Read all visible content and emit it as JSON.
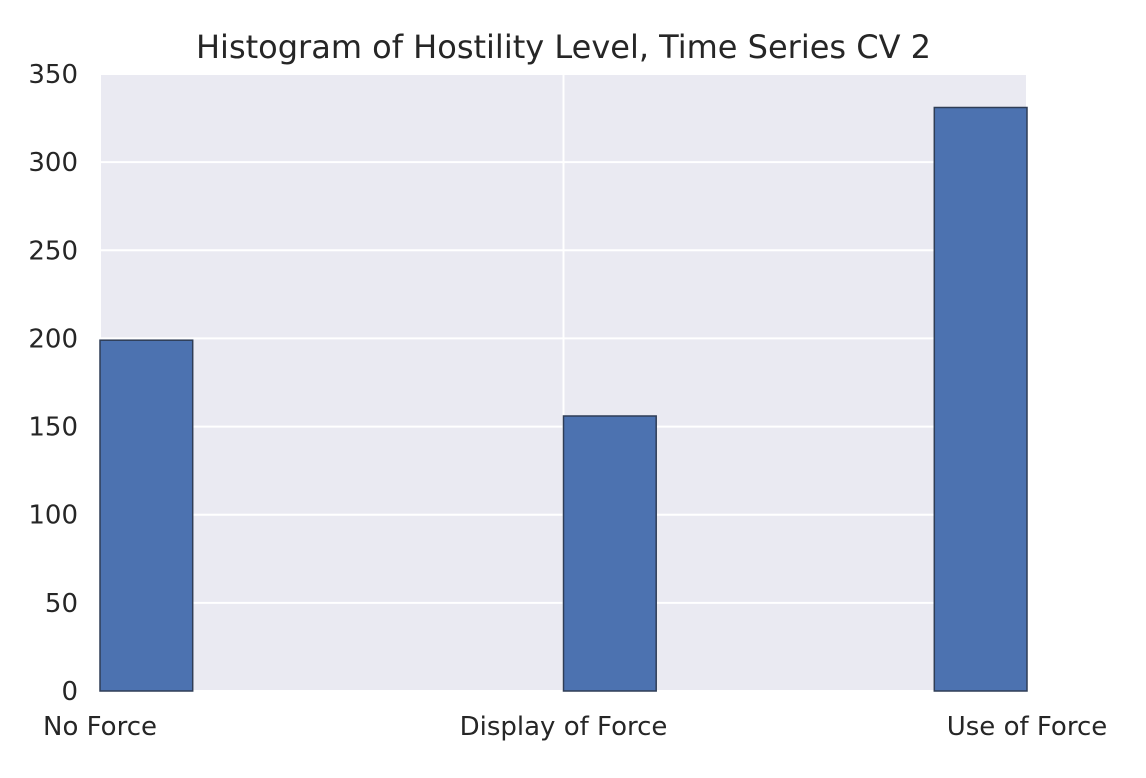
{
  "chart_data": {
    "type": "bar",
    "title": "Histogram of Hostility Level, Time Series CV 2",
    "xlabel": "",
    "ylabel": "",
    "x_ticks": [
      {
        "label": "No Force",
        "value": 0
      },
      {
        "label": "Display of Force",
        "value": 1
      },
      {
        "label": "Use of Force",
        "value": 2
      }
    ],
    "xlim": [
      0,
      2
    ],
    "ylim": [
      0,
      350
    ],
    "y_ticks": [
      0,
      50,
      100,
      150,
      200,
      250,
      300,
      350
    ],
    "bins": [
      {
        "start": 0.0,
        "end": 0.2,
        "value": 199
      },
      {
        "start": 0.2,
        "end": 0.4,
        "value": 0
      },
      {
        "start": 0.4,
        "end": 0.6,
        "value": 0
      },
      {
        "start": 0.6,
        "end": 0.8,
        "value": 0
      },
      {
        "start": 0.8,
        "end": 1.0,
        "value": 0
      },
      {
        "start": 1.0,
        "end": 1.2,
        "value": 156
      },
      {
        "start": 1.2,
        "end": 1.4,
        "value": 0
      },
      {
        "start": 1.4,
        "end": 1.6,
        "value": 0
      },
      {
        "start": 1.6,
        "end": 1.8,
        "value": 0
      },
      {
        "start": 1.8,
        "end": 2.0,
        "value": 331
      }
    ],
    "grid": true,
    "colors": {
      "bar": "#4c72b0",
      "bar_edge": "#2f3d56",
      "plot_background": "#eaeaf2",
      "grid": "#ffffff",
      "text": "#262626"
    }
  }
}
